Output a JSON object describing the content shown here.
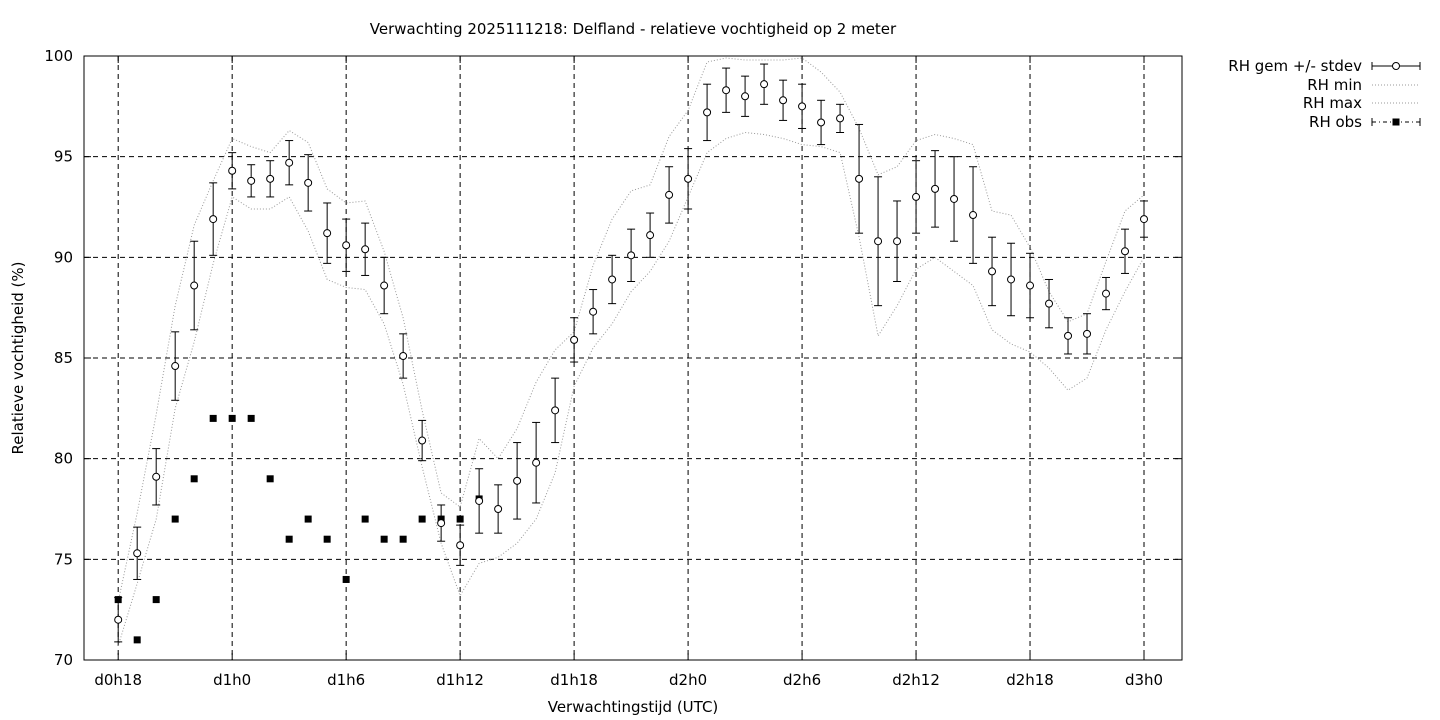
{
  "chart_data": {
    "type": "line",
    "title": "Verwachting 2025111218: Delfland - relatieve vochtigheid op 2 meter",
    "xlabel": "Verwachtingstijd (UTC)",
    "ylabel": "Relatieve vochtigheid (%)",
    "x_unit": "uur vanaf d0h0",
    "xlim": [
      16.2,
      74.0
    ],
    "ylim": [
      70,
      100
    ],
    "x_ticks": [
      {
        "x": 18,
        "label": "d0h18"
      },
      {
        "x": 24,
        "label": "d1h0"
      },
      {
        "x": 30,
        "label": "d1h6"
      },
      {
        "x": 36,
        "label": "d1h12"
      },
      {
        "x": 42,
        "label": "d1h18"
      },
      {
        "x": 48,
        "label": "d2h0"
      },
      {
        "x": 54,
        "label": "d2h6"
      },
      {
        "x": 60,
        "label": "d2h12"
      },
      {
        "x": 66,
        "label": "d2h18"
      },
      {
        "x": 72,
        "label": "d3h0"
      }
    ],
    "y_ticks": [
      {
        "y": 70,
        "label": "70"
      },
      {
        "y": 75,
        "label": "75"
      },
      {
        "y": 80,
        "label": "80"
      },
      {
        "y": 85,
        "label": "85"
      },
      {
        "y": 90,
        "label": "90"
      },
      {
        "y": 95,
        "label": "95"
      },
      {
        "y": 100,
        "label": "100"
      }
    ],
    "grid": true,
    "legend_position": "outside top-right",
    "series": [
      {
        "name": "RH gem +/- stdev",
        "style": "points-errorbars",
        "x": [
          18,
          19,
          20,
          21,
          22,
          23,
          24,
          25,
          26,
          27,
          28,
          29,
          30,
          31,
          32,
          33,
          34,
          35,
          36,
          37,
          38,
          39,
          40,
          41,
          42,
          43,
          44,
          45,
          46,
          47,
          48,
          49,
          50,
          51,
          52,
          53,
          54,
          55,
          56,
          57,
          58,
          59,
          60,
          61,
          62,
          63,
          64,
          65,
          66,
          67,
          68,
          69,
          70,
          71,
          72
        ],
        "values": [
          72.0,
          75.3,
          79.1,
          84.6,
          88.6,
          91.9,
          94.3,
          93.8,
          93.9,
          94.7,
          93.7,
          91.2,
          90.6,
          90.4,
          88.6,
          85.1,
          80.9,
          76.8,
          75.7,
          77.9,
          77.5,
          78.9,
          79.8,
          82.4,
          85.9,
          87.3,
          88.9,
          90.1,
          91.1,
          93.1,
          93.9,
          97.2,
          98.3,
          98.0,
          98.6,
          97.8,
          97.5,
          96.7,
          96.9,
          93.9,
          90.8,
          90.8,
          93.0,
          93.4,
          92.9,
          92.1,
          89.3,
          88.9,
          88.6,
          87.7,
          86.1,
          86.2,
          88.2,
          90.3,
          91.9
        ],
        "stdev": [
          1.1,
          1.3,
          1.4,
          1.7,
          2.2,
          1.8,
          0.9,
          0.8,
          0.9,
          1.1,
          1.4,
          1.5,
          1.3,
          1.3,
          1.4,
          1.1,
          1.0,
          0.9,
          1.0,
          1.6,
          1.2,
          1.9,
          2.0,
          1.6,
          1.1,
          1.1,
          1.2,
          1.3,
          1.1,
          1.4,
          1.5,
          1.4,
          1.1,
          1.0,
          1.0,
          1.0,
          1.1,
          1.1,
          0.7,
          2.7,
          3.2,
          2.0,
          1.8,
          1.9,
          2.1,
          2.4,
          1.7,
          1.8,
          1.6,
          1.2,
          0.9,
          1.0,
          0.8,
          1.1,
          0.9
        ]
      },
      {
        "name": "RH min",
        "style": "dotted",
        "x": [
          18,
          19,
          20,
          21,
          22,
          23,
          24,
          25,
          26,
          27,
          28,
          29,
          30,
          31,
          32,
          33,
          34,
          35,
          36,
          37,
          38,
          39,
          40,
          41,
          42,
          43,
          44,
          45,
          46,
          47,
          48,
          49,
          50,
          51,
          52,
          53,
          54,
          55,
          56,
          57,
          58,
          59,
          60,
          61,
          62,
          63,
          64,
          65,
          66,
          67,
          68,
          69,
          70,
          71,
          72
        ],
        "values": [
          70.7,
          73.8,
          77.0,
          82.5,
          85.8,
          89.7,
          93.0,
          92.4,
          92.4,
          93.0,
          91.3,
          88.9,
          88.5,
          88.4,
          86.7,
          83.7,
          79.6,
          75.8,
          73.2,
          74.8,
          75.1,
          75.8,
          77.0,
          79.3,
          83.6,
          85.5,
          86.7,
          88.3,
          89.3,
          90.8,
          93.0,
          95.2,
          95.9,
          96.2,
          96.1,
          95.9,
          95.6,
          95.5,
          95.2,
          91.0,
          86.1,
          87.6,
          89.4,
          90.0,
          89.3,
          88.6,
          86.4,
          85.7,
          85.3,
          84.5,
          83.4,
          84.0,
          86.4,
          88.3,
          90.0
        ]
      },
      {
        "name": "RH max",
        "style": "dotted",
        "x": [
          18,
          19,
          20,
          21,
          22,
          23,
          24,
          25,
          26,
          27,
          28,
          29,
          30,
          31,
          32,
          33,
          34,
          35,
          36,
          37,
          38,
          39,
          40,
          41,
          42,
          43,
          44,
          45,
          46,
          47,
          48,
          49,
          50,
          51,
          52,
          53,
          54,
          55,
          56,
          57,
          58,
          59,
          60,
          61,
          62,
          63,
          64,
          65,
          66,
          67,
          68,
          69,
          70,
          71,
          72
        ],
        "values": [
          72.9,
          77.3,
          82.2,
          87.6,
          91.6,
          93.8,
          95.9,
          95.5,
          95.2,
          96.3,
          95.7,
          93.4,
          92.7,
          92.8,
          90.3,
          87.0,
          82.4,
          78.3,
          77.6,
          81.0,
          80.0,
          81.5,
          83.8,
          85.4,
          86.3,
          89.6,
          91.9,
          93.3,
          93.6,
          96.0,
          97.3,
          99.7,
          99.9,
          99.8,
          99.8,
          99.8,
          99.9,
          99.2,
          98.2,
          96.4,
          94.1,
          94.5,
          95.8,
          96.1,
          95.9,
          95.6,
          92.3,
          92.1,
          90.5,
          88.3,
          86.8,
          87.2,
          89.8,
          92.3,
          93.1
        ]
      },
      {
        "name": "RH obs",
        "style": "points",
        "x": [
          18,
          19,
          20,
          21,
          22,
          23,
          24,
          25,
          26,
          27,
          28,
          29,
          30,
          31,
          32,
          33,
          34,
          35,
          36,
          37
        ],
        "values": [
          73,
          71,
          73,
          77,
          79,
          82,
          82,
          82,
          79,
          76,
          77,
          76,
          74,
          77,
          76,
          76,
          77,
          77,
          77,
          78
        ]
      }
    ]
  }
}
